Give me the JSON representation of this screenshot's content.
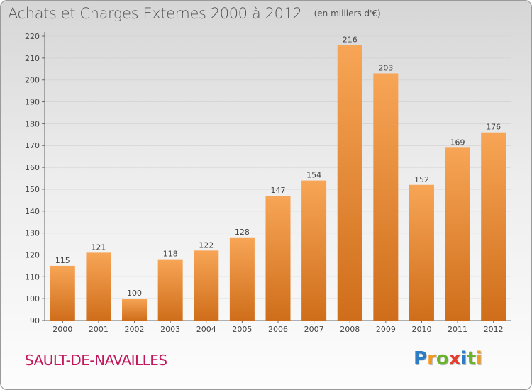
{
  "title": "Achats et Charges Externes 2000 à 2012",
  "unit": "(en milliers d'€)",
  "commune": "SAULT-DE-NAVAILLES",
  "logo": {
    "text": "Proxiti",
    "letters": [
      {
        "ch": "P",
        "color": "#2e7cc1"
      },
      {
        "ch": "r",
        "color": "#f29a1f"
      },
      {
        "ch": "o",
        "color": "#6ab42d"
      },
      {
        "ch": "x",
        "color": "#e53d2f"
      },
      {
        "ch": "i",
        "color": "#2e7cc1"
      },
      {
        "ch": "t",
        "color": "#6ab42d"
      },
      {
        "ch": "i",
        "color": "#f29a1f"
      }
    ]
  },
  "colors": {
    "bar_light": "#f7a556",
    "bar_dark": "#cf6e1a",
    "grid": "#d5d5d5",
    "axis": "#666666",
    "text": "#444444"
  },
  "chart_data": {
    "type": "bar",
    "categories": [
      "2000",
      "2001",
      "2002",
      "2003",
      "2004",
      "2005",
      "2006",
      "2007",
      "2008",
      "2009",
      "2010",
      "2011",
      "2012"
    ],
    "values": [
      115,
      121,
      100,
      118,
      122,
      128,
      147,
      154,
      216,
      203,
      152,
      169,
      176
    ],
    "yticks": [
      90,
      100,
      110,
      120,
      130,
      140,
      150,
      160,
      170,
      180,
      190,
      200,
      210,
      220
    ],
    "ylim": [
      90,
      220
    ],
    "grid": true,
    "data_labels": true
  }
}
